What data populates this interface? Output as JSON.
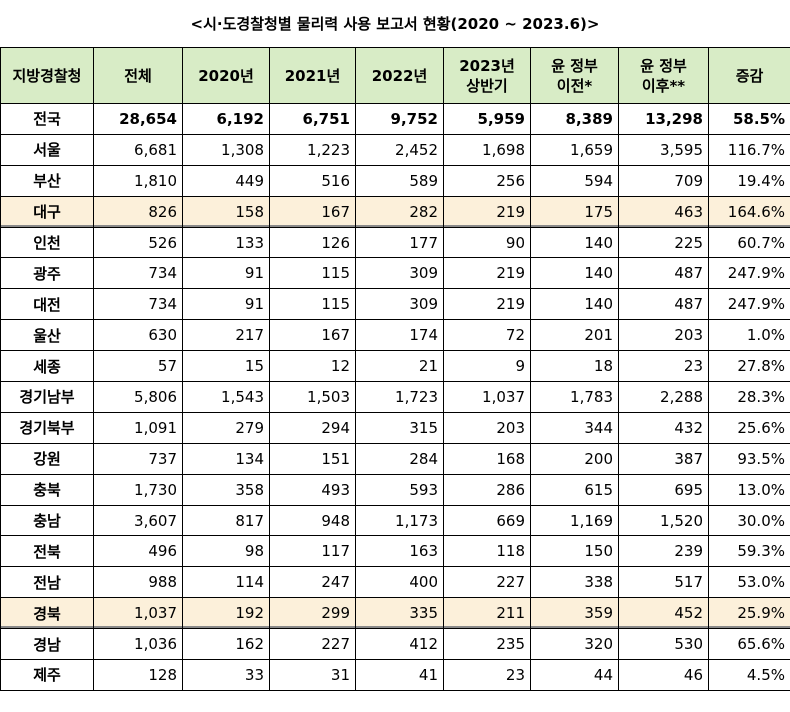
{
  "title": "<시·도경찰청별 물리력 사용 보고서 현황(2020 ~ 2023.6)>",
  "table": {
    "header": [
      "지방경찰청",
      "전체",
      "2020년",
      "2021년",
      "2022년",
      "2023년\n상반기",
      "윤 정부\n이전*",
      "윤 정부\n이후**",
      "증감"
    ],
    "rows": [
      [
        "전국",
        "28,654",
        "6,192",
        "6,751",
        "9,752",
        "5,959",
        "8,389",
        "13,298",
        "58.5%"
      ],
      [
        "서울",
        "6,681",
        "1,308",
        "1,223",
        "2,452",
        "1,698",
        "1,659",
        "3,595",
        "116.7%"
      ],
      [
        "부산",
        "1,810",
        "449",
        "516",
        "589",
        "256",
        "594",
        "709",
        "19.4%"
      ],
      [
        "대구",
        "826",
        "158",
        "167",
        "282",
        "219",
        "175",
        "463",
        "164.6%"
      ],
      [
        "인천",
        "526",
        "133",
        "126",
        "177",
        "90",
        "140",
        "225",
        "60.7%"
      ],
      [
        "광주",
        "734",
        "91",
        "115",
        "309",
        "219",
        "140",
        "487",
        "247.9%"
      ],
      [
        "대전",
        "734",
        "91",
        "115",
        "309",
        "219",
        "140",
        "487",
        "247.9%"
      ],
      [
        "울산",
        "630",
        "217",
        "167",
        "174",
        "72",
        "201",
        "203",
        "1.0%"
      ],
      [
        "세종",
        "57",
        "15",
        "12",
        "21",
        "9",
        "18",
        "23",
        "27.8%"
      ],
      [
        "경기남부",
        "5,806",
        "1,543",
        "1,503",
        "1,723",
        "1,037",
        "1,783",
        "2,288",
        "28.3%"
      ],
      [
        "경기북부",
        "1,091",
        "279",
        "294",
        "315",
        "203",
        "344",
        "432",
        "25.6%"
      ],
      [
        "강원",
        "737",
        "134",
        "151",
        "284",
        "168",
        "200",
        "387",
        "93.5%"
      ],
      [
        "충북",
        "1,730",
        "358",
        "493",
        "593",
        "286",
        "615",
        "695",
        "13.0%"
      ],
      [
        "충남",
        "3,607",
        "817",
        "948",
        "1,173",
        "669",
        "1,169",
        "1,520",
        "30.0%"
      ],
      [
        "전북",
        "496",
        "98",
        "117",
        "163",
        "118",
        "150",
        "239",
        "59.3%"
      ],
      [
        "전남",
        "988",
        "114",
        "247",
        "400",
        "227",
        "338",
        "517",
        "53.0%"
      ],
      [
        "경북",
        "1,037",
        "192",
        "299",
        "335",
        "211",
        "359",
        "452",
        "25.9%"
      ],
      [
        "경남",
        "1,036",
        "162",
        "227",
        "412",
        "235",
        "320",
        "530",
        "65.6%"
      ],
      [
        "제주",
        "128",
        "33",
        "31",
        "41",
        "23",
        "44",
        "46",
        "4.5%"
      ]
    ]
  }
}
